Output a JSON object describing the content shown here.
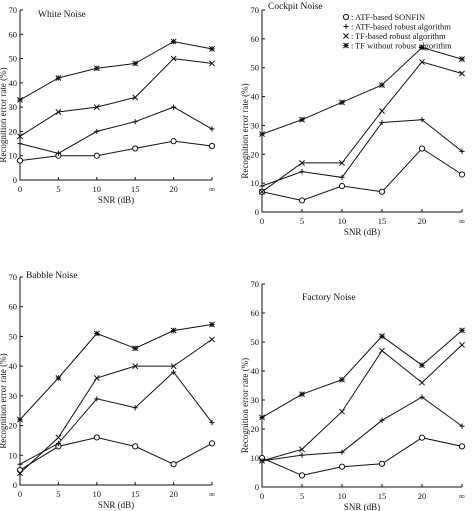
{
  "figure": {
    "legend": {
      "entries": [
        {
          "symbol": "o",
          "label": "ATF-based SONFIN"
        },
        {
          "symbol": "+",
          "label": "ATF-based robust algorithm"
        },
        {
          "symbol": "x",
          "label": "TF-based robust algorithm"
        },
        {
          "symbol": "*",
          "label": "TF without robust algorithm"
        }
      ]
    }
  },
  "chart_data": [
    {
      "type": "line",
      "title": "White Noise",
      "xlabel": "SNR (dB)",
      "ylabel": "Recognition error rate (%)",
      "categories": [
        "0",
        "5",
        "10",
        "15",
        "20",
        "∞"
      ],
      "yticks": [
        "0",
        "10",
        "20",
        "30",
        "40",
        "50",
        "60",
        "70"
      ],
      "ylim": [
        0,
        70
      ],
      "grid": false,
      "series": [
        {
          "marker": "o",
          "values": [
            8,
            10,
            10,
            13,
            16,
            14
          ]
        },
        {
          "marker": "+",
          "values": [
            15,
            11,
            20,
            24,
            30,
            21
          ]
        },
        {
          "marker": "x",
          "values": [
            18,
            28,
            30,
            34,
            50,
            48
          ]
        },
        {
          "marker": "*",
          "values": [
            33,
            42,
            46,
            48,
            57,
            54
          ]
        }
      ]
    },
    {
      "type": "line",
      "title": "Cockpit Noise",
      "xlabel": "SNR (dB)",
      "ylabel": "Recognition error rate (%)",
      "categories": [
        "0",
        "5",
        "10",
        "15",
        "20",
        "∞"
      ],
      "yticks": [
        "0",
        "10",
        "20",
        "30",
        "40",
        "50",
        "60",
        "70"
      ],
      "ylim": [
        0,
        70
      ],
      "grid": false,
      "legend_position": "top-right",
      "series": [
        {
          "marker": "o",
          "values": [
            7,
            4,
            9,
            7,
            22,
            13
          ]
        },
        {
          "marker": "+",
          "values": [
            9,
            14,
            12,
            31,
            32,
            21
          ]
        },
        {
          "marker": "x",
          "values": [
            7,
            17,
            17,
            35,
            52,
            48
          ]
        },
        {
          "marker": "*",
          "values": [
            27,
            32,
            38,
            44,
            57,
            53
          ]
        }
      ]
    },
    {
      "type": "line",
      "title": "Babble Noise",
      "xlabel": "SNR (dB)",
      "ylabel": "Recognition error rate (%)",
      "categories": [
        "0",
        "5",
        "10",
        "15",
        "20",
        "∞"
      ],
      "yticks": [
        "0",
        "10",
        "20",
        "30",
        "40",
        "50",
        "60",
        "70"
      ],
      "ylim": [
        0,
        70
      ],
      "grid": false,
      "series": [
        {
          "marker": "o",
          "values": [
            5,
            13,
            16,
            13,
            7,
            14
          ]
        },
        {
          "marker": "+",
          "values": [
            7,
            14,
            29,
            26,
            38,
            21
          ]
        },
        {
          "marker": "x",
          "values": [
            4,
            16,
            36,
            40,
            40,
            49
          ]
        },
        {
          "marker": "*",
          "values": [
            22,
            36,
            51,
            46,
            52,
            54
          ]
        }
      ]
    },
    {
      "type": "line",
      "title": "Factory Noise",
      "xlabel": "SNR (dB)",
      "ylabel": "Recognition error rate (%)",
      "categories": [
        "0",
        "5",
        "10",
        "15",
        "20",
        "∞"
      ],
      "yticks": [
        "0",
        "10",
        "20",
        "30",
        "40",
        "50",
        "60",
        "70"
      ],
      "ylim": [
        0,
        70
      ],
      "grid": false,
      "series": [
        {
          "marker": "o",
          "values": [
            10,
            4,
            7,
            8,
            17,
            14
          ]
        },
        {
          "marker": "+",
          "values": [
            9,
            11,
            12,
            23,
            31,
            21
          ]
        },
        {
          "marker": "x",
          "values": [
            9,
            13,
            26,
            47,
            36,
            49
          ]
        },
        {
          "marker": "*",
          "values": [
            24,
            32,
            37,
            52,
            42,
            54
          ]
        }
      ]
    }
  ]
}
